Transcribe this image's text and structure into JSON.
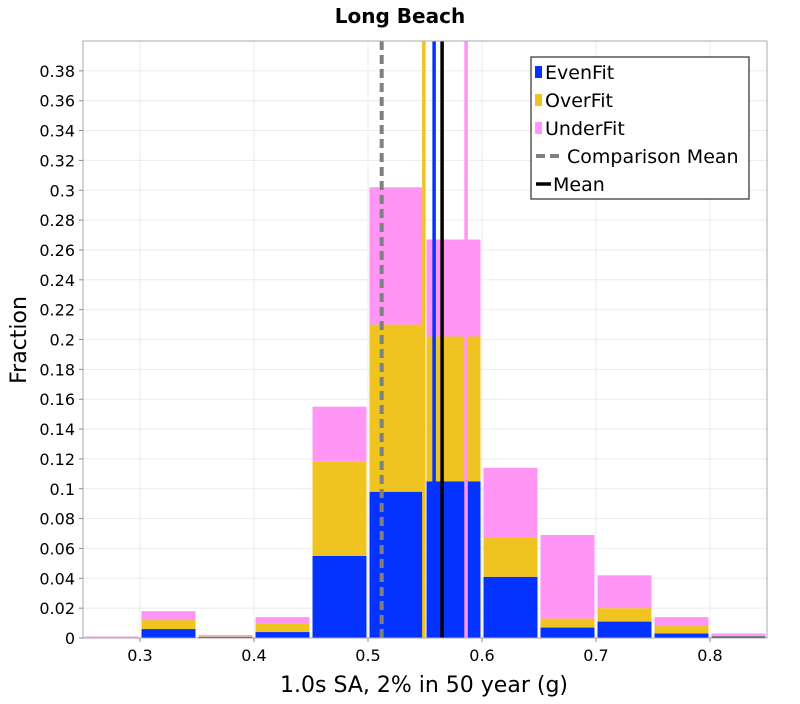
{
  "chart_data": {
    "type": "bar",
    "stacked": true,
    "title": "Long Beach",
    "xlabel": "1.0s SA, 2% in 50 year (g)",
    "ylabel": "Fraction",
    "xlim": [
      0.25,
      0.85
    ],
    "ylim": [
      0,
      0.4
    ],
    "xticks": [
      "0.3",
      "0.4",
      "0.5",
      "0.6",
      "0.7",
      "0.8"
    ],
    "yticks": [
      "0",
      "0.02",
      "0.04",
      "0.06",
      "0.08",
      "0.1",
      "0.12",
      "0.14",
      "0.16",
      "0.18",
      "0.2",
      "0.22",
      "0.24",
      "0.26",
      "0.28",
      "0.3",
      "0.32",
      "0.34",
      "0.36",
      "0.38"
    ],
    "grid": true,
    "legend_position": "top-right",
    "bin_width": 0.05,
    "bin_centers": [
      0.275,
      0.325,
      0.375,
      0.425,
      0.475,
      0.525,
      0.575,
      0.625,
      0.675,
      0.725,
      0.775,
      0.825
    ],
    "series": [
      {
        "name": "EvenFit",
        "color": "#0433ff",
        "values": [
          0.0,
          0.006,
          0.0008,
          0.004,
          0.055,
          0.098,
          0.105,
          0.041,
          0.007,
          0.011,
          0.003,
          0.001
        ]
      },
      {
        "name": "OverFit",
        "color": "#f0c420",
        "values": [
          0.0003,
          0.006,
          0.0003,
          0.006,
          0.063,
          0.112,
          0.097,
          0.026,
          0.006,
          0.009,
          0.005,
          0.0005
        ]
      },
      {
        "name": "UnderFit",
        "color": "#ff96f5",
        "values": [
          0.0007,
          0.006,
          0.0009,
          0.004,
          0.037,
          0.092,
          0.065,
          0.047,
          0.056,
          0.022,
          0.006,
          0.0015
        ]
      }
    ],
    "vertical_lines": [
      {
        "name": "Comparison Mean",
        "x": 0.512,
        "color": "#808080",
        "style": "dashed",
        "in_legend": true
      },
      {
        "name": "Mean",
        "x": 0.565,
        "color": "#000000",
        "style": "solid",
        "in_legend": true
      },
      {
        "name": "",
        "x": 0.549,
        "color": "#f0c420",
        "style": "solid",
        "in_legend": false
      },
      {
        "name": "",
        "x": 0.558,
        "color": "#0433ff",
        "style": "solid",
        "in_legend": false
      },
      {
        "name": "",
        "x": 0.586,
        "color": "#ff96f5",
        "style": "solid",
        "in_legend": false
      }
    ],
    "legend": [
      {
        "label": "EvenFit",
        "marker": "box",
        "color": "#0433ff"
      },
      {
        "label": "OverFit",
        "marker": "box",
        "color": "#f0c420"
      },
      {
        "label": "UnderFit",
        "marker": "box",
        "color": "#ff96f5"
      },
      {
        "label": "Comparison Mean",
        "marker": "dashed-line",
        "color": "#808080"
      },
      {
        "label": "Mean",
        "marker": "line",
        "color": "#000000"
      }
    ]
  }
}
